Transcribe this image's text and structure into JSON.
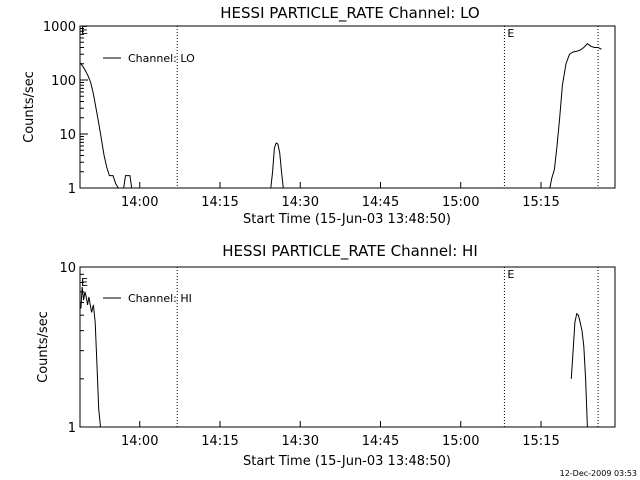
{
  "footer": {
    "timestamp": "12-Dec-2009 03:53"
  },
  "chart_data": [
    {
      "type": "line",
      "title": "HESSI PARTICLE_RATE Channel: LO",
      "xlabel": "Start Time (15-Jun-03 13:48:50)",
      "ylabel": "Counts/sec",
      "yscale": "log",
      "ylim": [
        1,
        1000
      ],
      "xlim": [
        "13:48:50",
        "15:28:50"
      ],
      "xticks": [
        "14:00",
        "14:15",
        "14:30",
        "14:45",
        "15:00",
        "15:15"
      ],
      "yticks": [
        "1",
        "10",
        "100",
        "1000"
      ],
      "legend": {
        "entry": "Channel: LO",
        "placement": "top-left"
      },
      "markers": [
        {
          "time": "14:07:00",
          "label": ""
        },
        {
          "time": "15:08:10",
          "label": "E"
        },
        {
          "time": "15:25:40",
          "label": ""
        }
      ],
      "series": [
        {
          "name": "Channel: LO",
          "points": [
            [
              "13:48:50",
              210
            ],
            [
              "13:49:20",
              180
            ],
            [
              "13:49:50",
              150
            ],
            [
              "13:50:20",
              120
            ],
            [
              "13:50:50",
              90
            ],
            [
              "13:51:20",
              55
            ],
            [
              "13:51:50",
              30
            ],
            [
              "13:52:20",
              16
            ],
            [
              "13:52:50",
              8
            ],
            [
              "13:53:20",
              4
            ],
            [
              "13:53:50",
              2.4
            ],
            [
              "13:54:20",
              1.7
            ],
            [
              "13:55:00",
              1.7
            ],
            [
              "13:55:30",
              1.2
            ],
            [
              "13:56:00",
              0.8
            ],
            null,
            [
              "13:57:00",
              1
            ],
            [
              "13:57:20",
              1.7
            ],
            [
              "13:58:10",
              1.7
            ],
            [
              "13:58:30",
              1
            ],
            [
              "13:58:50",
              0.8
            ],
            null,
            [
              "14:24:30",
              0.8
            ],
            [
              "14:24:50",
              2
            ],
            [
              "14:25:10",
              5.5
            ],
            [
              "14:25:30",
              6.8
            ],
            [
              "14:25:50",
              6.5
            ],
            [
              "14:26:10",
              4.5
            ],
            [
              "14:26:30",
              2
            ],
            [
              "14:26:50",
              1
            ],
            [
              "14:27:10",
              0.8
            ],
            null,
            [
              "15:16:40",
              0.8
            ],
            [
              "15:17:00",
              1.5
            ],
            [
              "15:17:30",
              2.2
            ],
            [
              "15:18:00",
              6
            ],
            [
              "15:18:30",
              20
            ],
            [
              "15:19:00",
              80
            ],
            [
              "15:19:40",
              200
            ],
            [
              "15:20:20",
              300
            ],
            [
              "15:21:00",
              330
            ],
            [
              "15:21:40",
              340
            ],
            [
              "15:22:20",
              360
            ],
            [
              "15:23:00",
              400
            ],
            [
              "15:23:40",
              470
            ],
            [
              "15:24:20",
              420
            ],
            [
              "15:25:00",
              400
            ],
            [
              "15:25:40",
              400
            ],
            [
              "15:26:20",
              370
            ]
          ]
        }
      ]
    },
    {
      "type": "line",
      "title": "HESSI PARTICLE_RATE Channel: HI",
      "xlabel": "Start Time (15-Jun-03 13:48:50)",
      "ylabel": "Counts/sec",
      "yscale": "log",
      "ylim": [
        1,
        10
      ],
      "xlim": [
        "13:48:50",
        "15:28:50"
      ],
      "xticks": [
        "14:00",
        "14:15",
        "14:30",
        "14:45",
        "15:00",
        "15:15"
      ],
      "yticks": [
        "1",
        "10"
      ],
      "legend": {
        "entry": "Channel: HI",
        "placement": "top-left"
      },
      "markers": [
        {
          "time": "14:07:00",
          "label": ""
        },
        {
          "time": "15:08:10",
          "label": "E"
        },
        {
          "time": "15:25:40",
          "label": ""
        }
      ],
      "series": [
        {
          "name": "Channel: HI",
          "points": [
            [
              "13:49:00",
              5.5
            ],
            [
              "13:49:15",
              7.5
            ],
            [
              "13:49:30",
              6.2
            ],
            [
              "13:49:45",
              7
            ],
            [
              "13:50:00",
              6.5
            ],
            [
              "13:50:15",
              5.8
            ],
            [
              "13:50:30",
              6.5
            ],
            [
              "13:50:45",
              5.8
            ],
            [
              "13:51:00",
              5.2
            ],
            [
              "13:51:20",
              5.8
            ],
            [
              "13:51:40",
              4.5
            ],
            [
              "13:52:00",
              2.5
            ],
            [
              "13:52:20",
              1.3
            ],
            [
              "13:52:40",
              1
            ],
            null,
            [
              "15:20:40",
              2
            ],
            [
              "15:21:00",
              3
            ],
            [
              "15:21:20",
              4.5
            ],
            [
              "15:21:40",
              5.1
            ],
            [
              "15:22:00",
              5
            ],
            [
              "15:22:20",
              4.5
            ],
            [
              "15:22:40",
              4
            ],
            [
              "15:23:00",
              3.2
            ],
            [
              "15:23:20",
              2
            ],
            [
              "15:23:40",
              1
            ]
          ]
        }
      ]
    }
  ]
}
